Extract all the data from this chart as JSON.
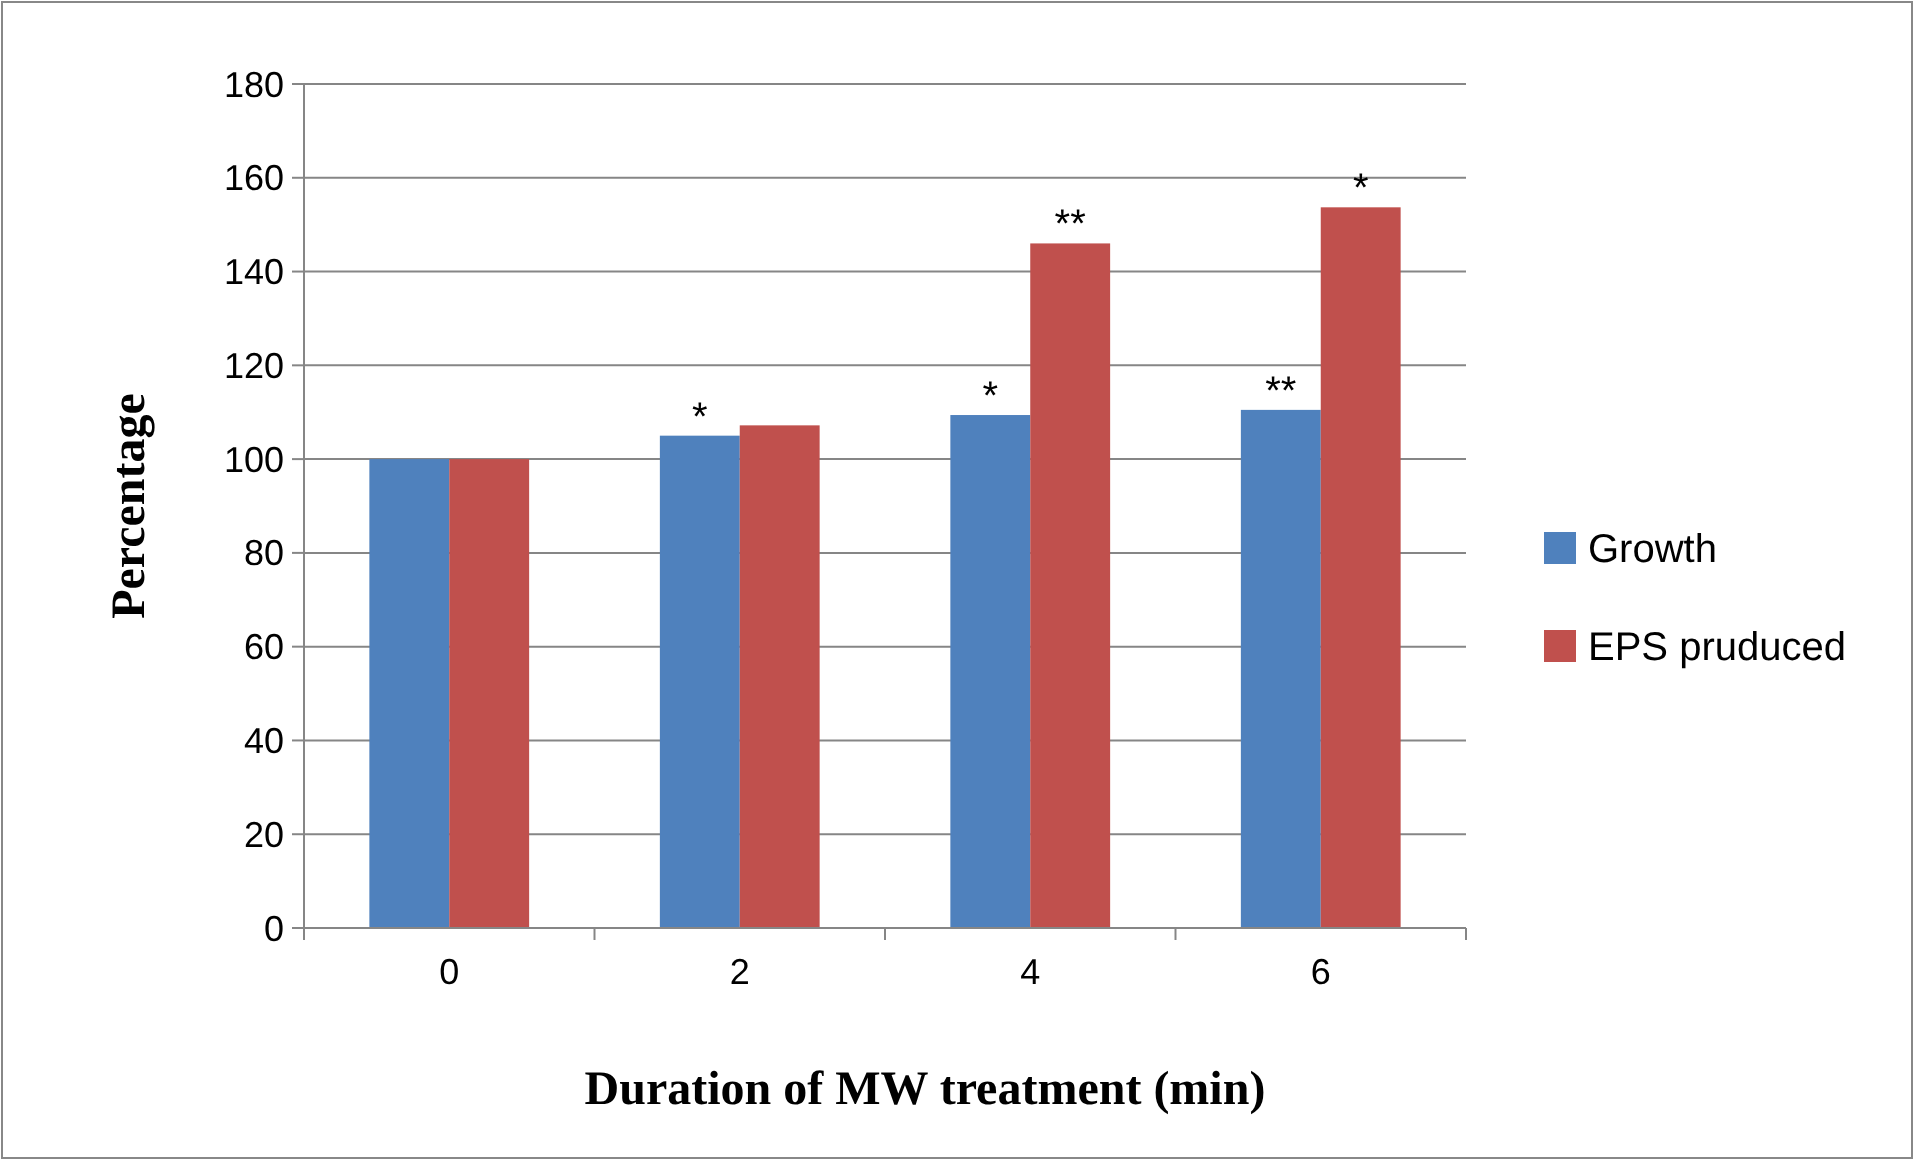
{
  "chart_data": {
    "type": "bar",
    "xlabel": "Duration of MW treatment (min)",
    "ylabel": "Percentage",
    "categories": [
      "0",
      "2",
      "4",
      "6"
    ],
    "series": [
      {
        "name": "Growth",
        "color": "#4f81bd",
        "values": [
          100,
          105,
          109.4,
          110.5
        ]
      },
      {
        "name": "EPS pruduced",
        "color": "#c0504d",
        "values": [
          100,
          107.2,
          146,
          153.7
        ]
      }
    ],
    "ylim": [
      0,
      180
    ],
    "yticks": [
      0,
      20,
      40,
      60,
      80,
      100,
      120,
      140,
      160,
      180
    ],
    "grid": "y",
    "legend": "right",
    "annotations": [
      {
        "text": "*",
        "x": "2",
        "y": 105
      },
      {
        "text": "*",
        "x": "4",
        "y": 109.4
      },
      {
        "text": "**",
        "x": "6",
        "y": 110.5
      },
      {
        "text": "**",
        "x": "4",
        "y": 146
      },
      {
        "text": "*",
        "x": "6",
        "y": 153.7
      }
    ]
  }
}
